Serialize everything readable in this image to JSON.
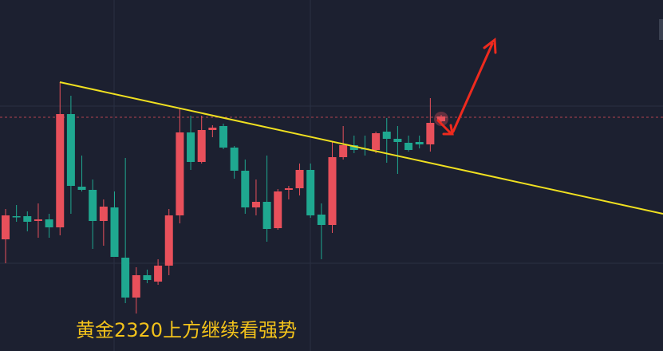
{
  "chart_data": {
    "type": "candlestick",
    "caption": "黄金2320上方继续看强势",
    "up_color": "#e8505b",
    "down_color": "#1fa890",
    "ylim": [
      0,
      440
    ],
    "open": [
      140,
      169,
      169,
      163,
      165,
      155,
      297,
      206,
      202,
      163,
      180,
      117,
      67,
      95,
      87,
      107,
      170,
      274,
      237,
      277,
      282,
      255,
      226,
      180,
      187,
      154,
      202,
      204,
      227,
      171,
      158,
      243,
      258,
      254,
      252,
      275,
      266,
      261,
      262,
      259,
      288
    ],
    "high": [
      178,
      183,
      175,
      185,
      172,
      337,
      320,
      245,
      215,
      190,
      200,
      242,
      105,
      102,
      115,
      178,
      305,
      295,
      295,
      283,
      285,
      257,
      240,
      215,
      245,
      203,
      207,
      235,
      235,
      185,
      262,
      282,
      270,
      270,
      275,
      292,
      282,
      270,
      270,
      317,
      296
    ],
    "low": [
      110,
      162,
      150,
      142,
      142,
      145,
      172,
      200,
      128,
      132,
      118,
      60,
      47,
      85,
      83,
      95,
      160,
      227,
      235,
      268,
      253,
      216,
      172,
      170,
      137,
      152,
      190,
      195,
      167,
      115,
      148,
      240,
      248,
      245,
      248,
      236,
      222,
      250,
      254,
      250,
      286
    ],
    "close": [
      170,
      168,
      162,
      165,
      155,
      297,
      207,
      202,
      163,
      181,
      118,
      67,
      95,
      89,
      107,
      170,
      274,
      237,
      277,
      280,
      255,
      226,
      180,
      187,
      153,
      200,
      204,
      227,
      170,
      158,
      243,
      258,
      252,
      253,
      273,
      266,
      262,
      252,
      259,
      286,
      294
    ]
  }
}
